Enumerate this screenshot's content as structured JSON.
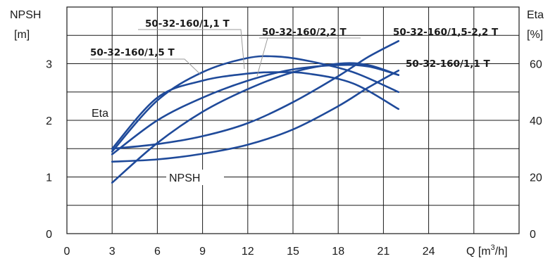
{
  "chart_data": {
    "type": "line",
    "left_axis": {
      "label_line1": "NPSH",
      "label_line2": "[m]",
      "ticks": [
        "0",
        "1",
        "2",
        "3"
      ],
      "range": [
        0,
        4
      ]
    },
    "right_axis": {
      "label_line1": "Eta",
      "label_line2": "[%]",
      "ticks": [
        "0",
        "20",
        "40",
        "60"
      ],
      "range": [
        0,
        80
      ]
    },
    "x_axis": {
      "label_prefix": "Q [m",
      "label_sup": "3",
      "label_suffix": "/h]",
      "ticks": [
        "0",
        "3",
        "6",
        "9",
        "12",
        "15",
        "18",
        "21",
        "24"
      ],
      "range": [
        0,
        30
      ]
    },
    "group_labels": {
      "eta": "Eta",
      "npsh": "NPSH"
    },
    "series_labels": [
      {
        "key": "s1",
        "text": "50-32-160/1,1 T"
      },
      {
        "key": "s2",
        "text": "50-32-160/2,2 T"
      },
      {
        "key": "s3",
        "text": "50-32-160/1,5-2,2 T"
      },
      {
        "key": "s4",
        "text": "50-32-160/1,5 T"
      },
      {
        "key": "s5",
        "text": "50-32-160/1,1 T"
      }
    ],
    "eta_series": [
      {
        "label": "s4",
        "points": [
          [
            3,
            29
          ],
          [
            6,
            47
          ],
          [
            9,
            57
          ],
          [
            12,
            62
          ],
          [
            14,
            62.5
          ],
          [
            16,
            61
          ],
          [
            19,
            57
          ],
          [
            22,
            50
          ]
        ]
      },
      {
        "label": "s1",
        "points": [
          [
            3,
            30
          ],
          [
            6,
            48
          ],
          [
            9,
            54
          ],
          [
            12,
            56.5
          ],
          [
            14,
            57
          ],
          [
            16,
            56.5
          ],
          [
            19,
            53
          ],
          [
            22,
            44
          ]
        ]
      },
      {
        "label": "s2",
        "points": [
          [
            3,
            28
          ],
          [
            6,
            40
          ],
          [
            9,
            48
          ],
          [
            12,
            54
          ],
          [
            15,
            58
          ],
          [
            18,
            59.5
          ],
          [
            20,
            59
          ],
          [
            22,
            56
          ]
        ]
      },
      {
        "label": "s5",
        "points": [
          [
            3,
            18
          ],
          [
            6,
            32
          ],
          [
            9,
            43
          ],
          [
            12,
            51
          ],
          [
            15,
            57
          ],
          [
            18,
            60
          ],
          [
            20,
            59.5
          ],
          [
            22,
            56
          ]
        ]
      }
    ],
    "npsh_series": [
      {
        "label": "s3",
        "points": [
          [
            3,
            1.5
          ],
          [
            6,
            1.58
          ],
          [
            9,
            1.72
          ],
          [
            12,
            1.95
          ],
          [
            15,
            2.32
          ],
          [
            18,
            2.78
          ],
          [
            20,
            3.12
          ],
          [
            22,
            3.4
          ]
        ]
      },
      {
        "label": "s5",
        "points": [
          [
            3,
            1.27
          ],
          [
            6,
            1.31
          ],
          [
            9,
            1.41
          ],
          [
            12,
            1.57
          ],
          [
            15,
            1.84
          ],
          [
            18,
            2.25
          ],
          [
            20,
            2.58
          ],
          [
            22,
            2.88
          ]
        ]
      }
    ]
  }
}
